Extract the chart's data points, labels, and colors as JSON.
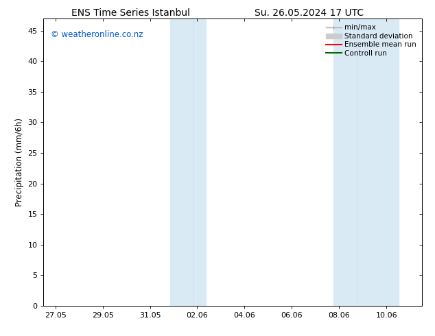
{
  "title_left": "ENS Time Series Istanbul",
  "title_right": "Su. 26.05.2024 17 UTC",
  "ylabel": "Precipitation (mm/6h)",
  "watermark": "© weatheronline.co.nz",
  "watermark_color": "#0055cc",
  "background_color": "#ffffff",
  "plot_bg_color": "#ffffff",
  "shaded_color": "#daeaf5",
  "ylim": [
    0,
    47
  ],
  "yticks": [
    0,
    5,
    10,
    15,
    20,
    25,
    30,
    35,
    40,
    45
  ],
  "xtick_labels": [
    "27.05",
    "29.05",
    "31.05",
    "02.06",
    "04.06",
    "06.06",
    "08.06",
    "10.06"
  ],
  "xtick_positions": [
    0,
    2,
    4,
    6,
    8,
    10,
    12,
    14
  ],
  "x_min": -0.5,
  "x_max": 15.5,
  "band1_start": 4.85,
  "band1_mid": 5.85,
  "band1_end": 6.35,
  "band2_start": 11.75,
  "band2_mid": 12.75,
  "band2_end": 14.5,
  "legend_entries": [
    {
      "label": "min/max",
      "color": "#aaaaaa",
      "lw": 1.0
    },
    {
      "label": "Standard deviation",
      "color": "#cccccc",
      "lw": 8
    },
    {
      "label": "Ensemble mean run",
      "color": "#ff0000",
      "lw": 1.5
    },
    {
      "label": "Controll run",
      "color": "#006600",
      "lw": 1.5
    }
  ],
  "font_size_title": 10,
  "font_size_legend": 7.5,
  "font_size_ticks": 8,
  "font_size_ylabel": 8.5,
  "font_size_watermark": 8.5
}
